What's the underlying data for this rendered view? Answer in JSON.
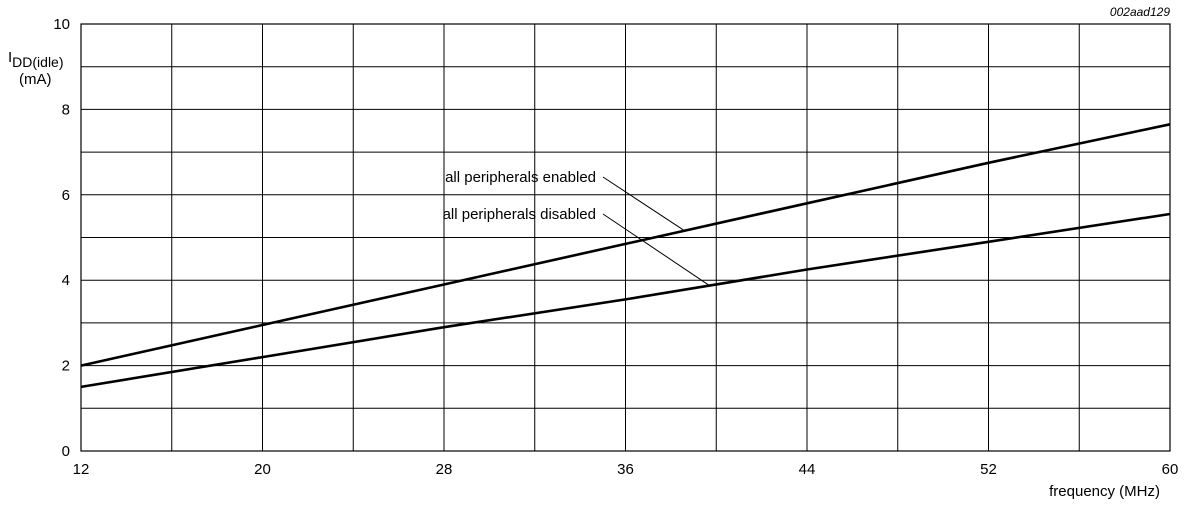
{
  "figure_id": "002aad129",
  "chart_data": {
    "type": "line",
    "title": "",
    "xlabel": "frequency (MHz)",
    "ylabel": {
      "main": "I",
      "subscript": "DD(idle)",
      "unit": "(mA)"
    },
    "xlim": [
      12,
      60
    ],
    "ylim": [
      0,
      10
    ],
    "x_ticks": [
      12,
      20,
      28,
      36,
      44,
      52,
      60
    ],
    "y_ticks": [
      0,
      2,
      4,
      6,
      8,
      10
    ],
    "x_gridlines": [
      12,
      16,
      20,
      24,
      28,
      32,
      36,
      40,
      44,
      48,
      52,
      56,
      60
    ],
    "y_gridlines": [
      0,
      1,
      2,
      3,
      4,
      5,
      6,
      7,
      8,
      9,
      10
    ],
    "grid": true,
    "legend": "inline annotations",
    "series": [
      {
        "name": "all peripherals enabled",
        "x": [
          12,
          20,
          28,
          36,
          44,
          52,
          60
        ],
        "y": [
          2.0,
          2.95,
          3.9,
          4.85,
          5.8,
          6.75,
          7.65
        ]
      },
      {
        "name": "all peripherals disabled",
        "x": [
          12,
          20,
          28,
          36,
          44,
          52,
          60
        ],
        "y": [
          1.5,
          2.2,
          2.9,
          3.55,
          4.25,
          4.9,
          5.55
        ]
      }
    ]
  }
}
